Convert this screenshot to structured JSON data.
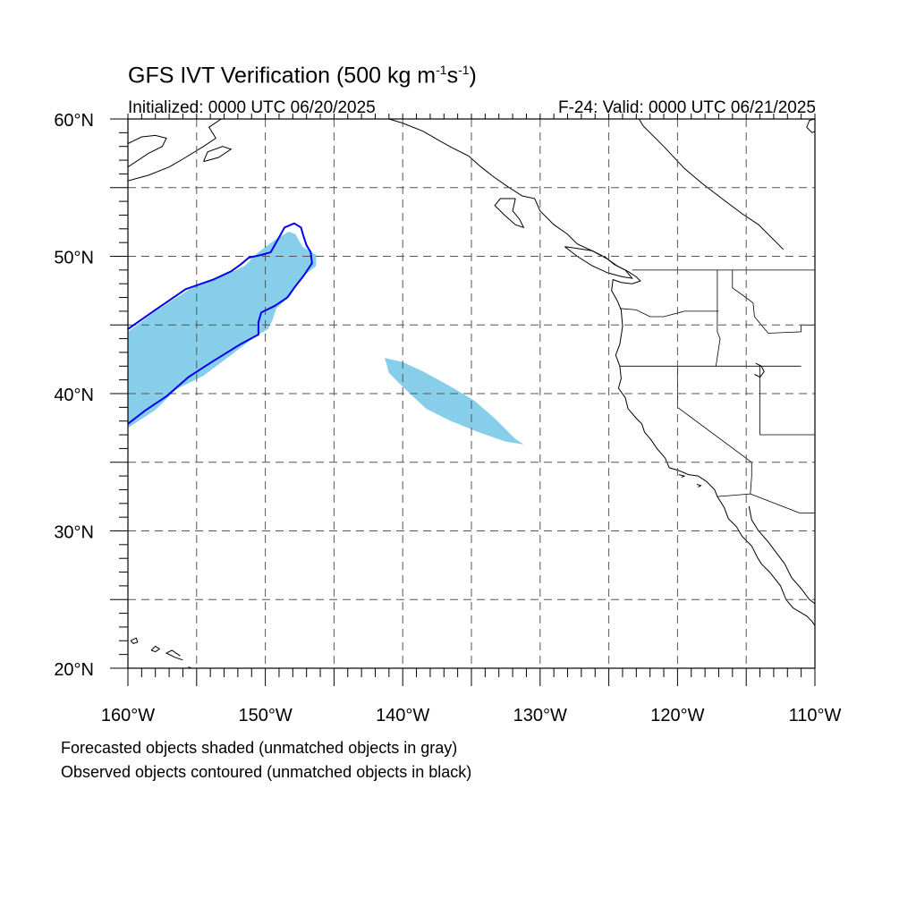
{
  "title": {
    "prefix": "GFS IVT Verification (500 kg m",
    "sup1": "-1",
    "middle": "s",
    "sup2": "-1",
    "suffix": ")"
  },
  "subtitle_left": "Initialized: 0000 UTC 06/20/2025",
  "subtitle_right": "F-24: Valid: 0000 UTC 06/21/2025",
  "notes": [
    "Forecasted objects shaded (unmatched objects in gray)",
    "Observed objects contoured (unmatched objects in black)"
  ],
  "map": {
    "lon_range": [
      -160,
      -110
    ],
    "lat_range": [
      20,
      60
    ],
    "lon_ticks": [
      {
        "value": -160,
        "label": "160°W"
      },
      {
        "value": -150,
        "label": "150°W"
      },
      {
        "value": -140,
        "label": "140°W"
      },
      {
        "value": -130,
        "label": "130°W"
      },
      {
        "value": -120,
        "label": "120°W"
      },
      {
        "value": -110,
        "label": "110°W"
      }
    ],
    "lat_ticks": [
      {
        "value": 20,
        "label": "20°N"
      },
      {
        "value": 30,
        "label": "30°N"
      },
      {
        "value": 40,
        "label": "40°N"
      },
      {
        "value": 50,
        "label": "50°N"
      },
      {
        "value": 60,
        "label": "60°N"
      }
    ],
    "grid_lons": [
      -155,
      -150,
      -145,
      -140,
      -135,
      -130,
      -125,
      -120,
      -115
    ],
    "grid_lats": [
      25,
      30,
      35,
      40,
      45,
      50,
      55
    ],
    "colors": {
      "forecast_fill": "#87ceeb",
      "observed_contour": "#0000ee",
      "coastline": "#000000",
      "grid": "#555555"
    },
    "forecast_objects": [
      {
        "name": "forecast-object-west",
        "polygon": [
          [
            -160,
            44.5
          ],
          [
            -158,
            46
          ],
          [
            -155.5,
            47.6
          ],
          [
            -153,
            48.6
          ],
          [
            -151.5,
            49.3
          ],
          [
            -150.5,
            50.3
          ],
          [
            -149.3,
            51.2
          ],
          [
            -148.3,
            51.8
          ],
          [
            -147.8,
            51.6
          ],
          [
            -147.3,
            50.7
          ],
          [
            -146.3,
            50.1
          ],
          [
            -146.3,
            49.3
          ],
          [
            -147.3,
            48.5
          ],
          [
            -148.2,
            47.1
          ],
          [
            -149.2,
            46.2
          ],
          [
            -149.5,
            45.3
          ],
          [
            -149.8,
            44.7
          ],
          [
            -150.8,
            44.1
          ],
          [
            -152.5,
            42.8
          ],
          [
            -154.5,
            41.3
          ],
          [
            -156.5,
            40.3
          ],
          [
            -158,
            38.8
          ],
          [
            -160,
            37.5
          ]
        ]
      },
      {
        "name": "forecast-object-central",
        "polygon": [
          [
            -141.3,
            42.6
          ],
          [
            -140,
            42.3
          ],
          [
            -138.5,
            41.6
          ],
          [
            -136.5,
            40.5
          ],
          [
            -134.8,
            39.5
          ],
          [
            -133.3,
            38.2
          ],
          [
            -131.8,
            36.7
          ],
          [
            -131.2,
            36.3
          ],
          [
            -132.5,
            36.5
          ],
          [
            -134.5,
            37.2
          ],
          [
            -136.5,
            38
          ],
          [
            -138.3,
            38.9
          ],
          [
            -139.8,
            40.3
          ],
          [
            -141,
            41.5
          ]
        ]
      }
    ],
    "observed_objects": [
      {
        "name": "observed-contour-west",
        "polygon": [
          [
            -160,
            44.7
          ],
          [
            -158,
            46.1
          ],
          [
            -155.8,
            47.6
          ],
          [
            -153.8,
            48.3
          ],
          [
            -152.5,
            48.9
          ],
          [
            -151.8,
            49.4
          ],
          [
            -151.2,
            49.9
          ],
          [
            -150.3,
            50.1
          ],
          [
            -149.6,
            50.3
          ],
          [
            -149.1,
            51.2
          ],
          [
            -148.6,
            52.1
          ],
          [
            -147.9,
            52.4
          ],
          [
            -147.4,
            52.1
          ],
          [
            -147.2,
            51.4
          ],
          [
            -147.0,
            50.8
          ],
          [
            -146.7,
            50.3
          ],
          [
            -146.6,
            49.5
          ],
          [
            -147.2,
            48.6
          ],
          [
            -147.9,
            47.7
          ],
          [
            -148.4,
            47.0
          ],
          [
            -149.3,
            46.4
          ],
          [
            -150.3,
            45.9
          ],
          [
            -150.5,
            45.2
          ],
          [
            -150.5,
            44.3
          ],
          [
            -151.8,
            43.6
          ],
          [
            -153.9,
            42.3
          ],
          [
            -155.6,
            41.2
          ],
          [
            -157.2,
            39.8
          ],
          [
            -158.7,
            38.8
          ],
          [
            -160,
            37.8
          ]
        ]
      }
    ],
    "coastlines": [
      [
        [
          -160,
          58.2
        ],
        [
          -159,
          58.7
        ],
        [
          -158,
          58.8
        ],
        [
          -157.2,
          58.6
        ],
        [
          -157.5,
          58.0
        ],
        [
          -158.5,
          57.5
        ],
        [
          -160,
          56.5
        ]
      ],
      [
        [
          -160,
          55.5
        ],
        [
          -158.5,
          55.9
        ],
        [
          -157,
          56.5
        ],
        [
          -155.8,
          57.2
        ],
        [
          -154.5,
          58.0
        ],
        [
          -153.6,
          58.6
        ],
        [
          -154.1,
          59.4
        ],
        [
          -153.2,
          60
        ]
      ],
      [
        [
          -154.5,
          56.9
        ],
        [
          -153.4,
          57.2
        ],
        [
          -152.5,
          57.8
        ],
        [
          -153.1,
          58.0
        ],
        [
          -154.2,
          57.6
        ],
        [
          -154.5,
          56.9
        ]
      ],
      [
        [
          -141,
          60
        ],
        [
          -140,
          59.7
        ],
        [
          -138.5,
          59.1
        ],
        [
          -137.3,
          58.4
        ],
        [
          -136.4,
          57.9
        ],
        [
          -135.2,
          57.3
        ],
        [
          -134.3,
          56.5
        ],
        [
          -133.4,
          55.8
        ],
        [
          -132.4,
          55.1
        ],
        [
          -131.3,
          54.4
        ],
        [
          -130.4,
          54.2
        ],
        [
          -130.0,
          53.3
        ],
        [
          -129.0,
          52.3
        ],
        [
          -128.0,
          51.6
        ],
        [
          -127.3,
          50.9
        ],
        [
          -126.2,
          50.4
        ],
        [
          -125.1,
          49.8
        ],
        [
          -124.4,
          49.3
        ],
        [
          -123.6,
          48.9
        ],
        [
          -123.0,
          48.5
        ],
        [
          -122.7,
          48.2
        ],
        [
          -123.3,
          48.0
        ],
        [
          -124.1,
          48.1
        ],
        [
          -124.7,
          48.3
        ],
        [
          -124.8,
          47.5
        ],
        [
          -124.4,
          46.8
        ],
        [
          -124.1,
          46.1
        ],
        [
          -124.0,
          44.9
        ],
        [
          -124.2,
          43.6
        ],
        [
          -124.5,
          42.8
        ],
        [
          -124.2,
          42.0
        ],
        [
          -124.1,
          41.1
        ],
        [
          -124.3,
          40.4
        ],
        [
          -123.8,
          39.7
        ],
        [
          -123.6,
          38.9
        ],
        [
          -123.0,
          38.2
        ],
        [
          -122.6,
          37.8
        ],
        [
          -122.4,
          37.2
        ],
        [
          -121.9,
          36.6
        ],
        [
          -121.5,
          36.0
        ],
        [
          -120.9,
          35.3
        ],
        [
          -120.6,
          34.6
        ],
        [
          -119.9,
          34.4
        ],
        [
          -119.2,
          34.1
        ],
        [
          -118.5,
          34.0
        ],
        [
          -117.9,
          33.6
        ],
        [
          -117.3,
          33.0
        ],
        [
          -117.1,
          32.5
        ],
        [
          -116.6,
          31.7
        ],
        [
          -116.3,
          30.9
        ],
        [
          -115.7,
          30.3
        ],
        [
          -115.3,
          29.6
        ],
        [
          -114.6,
          28.9
        ],
        [
          -114.2,
          28.1
        ],
        [
          -113.9,
          27.6
        ],
        [
          -113.3,
          27.0
        ],
        [
          -112.5,
          26.0
        ],
        [
          -112.1,
          25.0
        ],
        [
          -111.6,
          24.4
        ],
        [
          -110.6,
          23.8
        ],
        [
          -110.2,
          23.4
        ],
        [
          -110,
          23.1
        ]
      ],
      [
        [
          -131.8,
          54.2
        ],
        [
          -132.9,
          54.2
        ],
        [
          -133.3,
          53.7
        ],
        [
          -132.6,
          53.0
        ],
        [
          -131.8,
          52.3
        ],
        [
          -131.2,
          52.1
        ],
        [
          -131.5,
          52.7
        ],
        [
          -132.0,
          53.3
        ],
        [
          -131.8,
          54.2
        ]
      ],
      [
        [
          -128.2,
          50.7
        ],
        [
          -127.5,
          50.6
        ],
        [
          -126.2,
          50.4
        ],
        [
          -125.2,
          49.9
        ],
        [
          -124.6,
          49.4
        ],
        [
          -123.8,
          49.0
        ],
        [
          -123.3,
          48.4
        ],
        [
          -124.0,
          48.5
        ],
        [
          -125.1,
          48.8
        ],
        [
          -126.2,
          49.3
        ],
        [
          -127.3,
          50.0
        ],
        [
          -128.2,
          50.7
        ]
      ],
      [
        [
          -114.8,
          31.8
        ],
        [
          -114.6,
          30.8
        ],
        [
          -114.1,
          30.0
        ],
        [
          -113.4,
          29.2
        ],
        [
          -112.8,
          28.4
        ],
        [
          -112.2,
          27.6
        ],
        [
          -111.7,
          26.6
        ],
        [
          -111.0,
          25.8
        ],
        [
          -110.4,
          25.0
        ],
        [
          -110,
          24.7
        ]
      ],
      [
        [
          -110,
          60
        ],
        [
          -110.4,
          59.9
        ],
        [
          -110.6,
          59.4
        ],
        [
          -110.2,
          59.0
        ],
        [
          -110,
          59.1
        ]
      ],
      [
        [
          -156,
          20.6
        ],
        [
          -156.6,
          20.8
        ],
        [
          -157.2,
          21.1
        ],
        [
          -156.8,
          21.3
        ],
        [
          -156.2,
          20.9
        ]
      ],
      [
        [
          -158.3,
          21.3
        ],
        [
          -158.0,
          21.6
        ],
        [
          -157.7,
          21.4
        ],
        [
          -158.0,
          21.2
        ],
        [
          -158.3,
          21.3
        ]
      ],
      [
        [
          -159.8,
          22.0
        ],
        [
          -159.4,
          22.2
        ],
        [
          -159.3,
          21.9
        ],
        [
          -159.6,
          21.8
        ],
        [
          -159.8,
          22.0
        ]
      ],
      [
        [
          -155.6,
          20.1
        ],
        [
          -155.0,
          19.8
        ],
        [
          -154.9,
          19.6
        ]
      ],
      [
        [
          -119.9,
          34.1
        ],
        [
          -119.5,
          34.0
        ],
        [
          -119.7,
          33.9
        ]
      ],
      [
        [
          -118.6,
          33.4
        ],
        [
          -118.3,
          33.3
        ],
        [
          -118.5,
          33.2
        ]
      ],
      [
        [
          -122.8,
          60
        ],
        [
          -122.5,
          59.5
        ],
        [
          -121.0,
          58.0
        ],
        [
          -119.5,
          56.4
        ],
        [
          -118.2,
          55.3
        ],
        [
          -116.5,
          54.0
        ],
        [
          -115.3,
          53.1
        ],
        [
          -114.1,
          52.3
        ],
        [
          -112.3,
          50.5
        ]
      ],
      [
        [
          -114.3,
          42.2
        ],
        [
          -113.9,
          42.0
        ],
        [
          -113.7,
          41.6
        ],
        [
          -114.0,
          41.2
        ],
        [
          -114.4,
          41.4
        ]
      ]
    ],
    "borders": [
      [
        [
          -123.3,
          49
        ],
        [
          -110,
          49
        ]
      ],
      [
        [
          -124.2,
          46.2
        ],
        [
          -123.0,
          46.1
        ],
        [
          -122.0,
          45.6
        ],
        [
          -121.0,
          45.6
        ],
        [
          -119.5,
          46.0
        ],
        [
          -117.0,
          46.0
        ]
      ],
      [
        [
          -124.2,
          42
        ],
        [
          -111,
          42
        ]
      ],
      [
        [
          -120,
          42
        ],
        [
          -120,
          39
        ],
        [
          -114.6,
          35.0
        ],
        [
          -114.6,
          34.0
        ],
        [
          -114.7,
          32.7
        ]
      ],
      [
        [
          -117.1,
          49
        ],
        [
          -117.1,
          44.5
        ],
        [
          -116.9,
          44.0
        ],
        [
          -117.2,
          42.0
        ]
      ],
      [
        [
          -116.0,
          49
        ],
        [
          -116.0,
          47.7
        ],
        [
          -115.3,
          47.2
        ],
        [
          -114.5,
          46.6
        ],
        [
          -114.4,
          45.6
        ],
        [
          -113.4,
          44.4
        ],
        [
          -111.0,
          44.5
        ],
        [
          -111.0,
          45.0
        ],
        [
          -110,
          45.0
        ]
      ],
      [
        [
          -114.0,
          42
        ],
        [
          -114.0,
          37.0
        ],
        [
          -110,
          37.0
        ]
      ],
      [
        [
          -114.7,
          32.7
        ],
        [
          -117.1,
          32.5
        ]
      ],
      [
        [
          -114.7,
          32.7
        ],
        [
          -111.1,
          31.3
        ],
        [
          -110,
          31.3
        ]
      ]
    ]
  }
}
